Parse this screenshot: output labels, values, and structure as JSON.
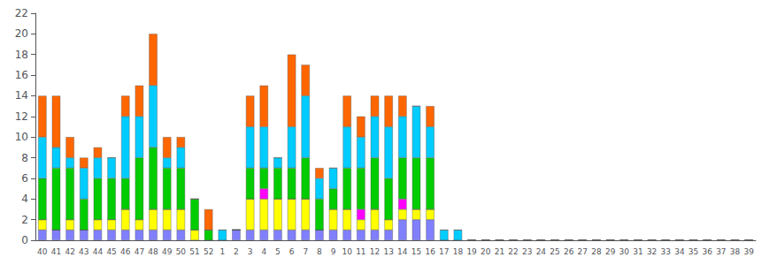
{
  "chart_data": {
    "type": "bar",
    "stacked": true,
    "grid": false,
    "categories": [
      "40",
      "41",
      "42",
      "43",
      "44",
      "45",
      "46",
      "47",
      "48",
      "49",
      "50",
      "51",
      "52",
      "1",
      "2",
      "3",
      "4",
      "5",
      "6",
      "7",
      "8",
      "9",
      "10",
      "11",
      "12",
      "13",
      "14",
      "15",
      "16",
      "17",
      "18",
      "19",
      "20",
      "21",
      "22",
      "23",
      "24",
      "25",
      "26",
      "27",
      "28",
      "29",
      "30",
      "31",
      "32",
      "33",
      "34",
      "35",
      "36",
      "37",
      "38",
      "39"
    ],
    "series": [
      {
        "color": "#8080ff",
        "values": [
          1,
          1,
          1,
          1,
          1,
          1,
          1,
          1,
          1,
          1,
          1,
          0,
          0,
          0,
          1,
          1,
          1,
          1,
          1,
          1,
          1,
          1,
          1,
          1,
          1,
          1,
          2,
          2,
          2,
          0,
          0,
          0,
          0,
          0,
          0,
          0,
          0,
          0,
          0,
          0,
          0,
          0,
          0,
          0,
          0,
          0,
          0,
          0,
          0,
          0,
          0,
          0
        ]
      },
      {
        "color": "#ffff00",
        "values": [
          1,
          0,
          1,
          0,
          1,
          1,
          2,
          1,
          2,
          2,
          2,
          1,
          0,
          0,
          0,
          3,
          3,
          3,
          3,
          3,
          0,
          2,
          2,
          1,
          2,
          1,
          1,
          1,
          1,
          0,
          0,
          0,
          0,
          0,
          0,
          0,
          0,
          0,
          0,
          0,
          0,
          0,
          0,
          0,
          0,
          0,
          0,
          0,
          0,
          0,
          0,
          0
        ]
      },
      {
        "color": "#ff00ff",
        "values": [
          0,
          0,
          0,
          0,
          0,
          0,
          0,
          0,
          0,
          0,
          0,
          0,
          0,
          0,
          0,
          0,
          1,
          0,
          0,
          0,
          0,
          0,
          0,
          1,
          0,
          0,
          1,
          0,
          0,
          0,
          0,
          0,
          0,
          0,
          0,
          0,
          0,
          0,
          0,
          0,
          0,
          0,
          0,
          0,
          0,
          0,
          0,
          0,
          0,
          0,
          0,
          0
        ]
      },
      {
        "color": "#00cc00",
        "values": [
          4,
          6,
          5,
          3,
          4,
          4,
          3,
          6,
          6,
          4,
          4,
          3,
          1,
          0,
          0,
          3,
          2,
          3,
          3,
          4,
          3,
          2,
          4,
          4,
          5,
          4,
          4,
          5,
          5,
          0,
          0,
          0,
          0,
          0,
          0,
          0,
          0,
          0,
          0,
          0,
          0,
          0,
          0,
          0,
          0,
          0,
          0,
          0,
          0,
          0,
          0,
          0
        ]
      },
      {
        "color": "#00ccff",
        "values": [
          4,
          2,
          1,
          3,
          2,
          2,
          6,
          4,
          6,
          1,
          2,
          0,
          0,
          1,
          0,
          4,
          4,
          1,
          4,
          6,
          2,
          2,
          4,
          3,
          4,
          5,
          4,
          5,
          3,
          1,
          1,
          0,
          0,
          0,
          0,
          0,
          0,
          0,
          0,
          0,
          0,
          0,
          0,
          0,
          0,
          0,
          0,
          0,
          0,
          0,
          0,
          0
        ]
      },
      {
        "color": "#ff6600",
        "values": [
          4,
          5,
          2,
          1,
          1,
          0,
          2,
          3,
          5,
          2,
          1,
          0,
          2,
          0,
          0,
          3,
          4,
          0,
          7,
          3,
          1,
          0,
          3,
          2,
          2,
          3,
          2,
          0,
          2,
          0,
          0,
          0,
          0,
          0,
          0,
          0,
          0,
          0,
          0,
          0,
          0,
          0,
          0,
          0,
          0,
          0,
          0,
          0,
          0,
          0,
          0,
          0
        ]
      }
    ],
    "ylim": [
      0,
      22
    ],
    "yticks": [
      0,
      2,
      4,
      6,
      8,
      10,
      12,
      14,
      16,
      18,
      20,
      22
    ]
  }
}
